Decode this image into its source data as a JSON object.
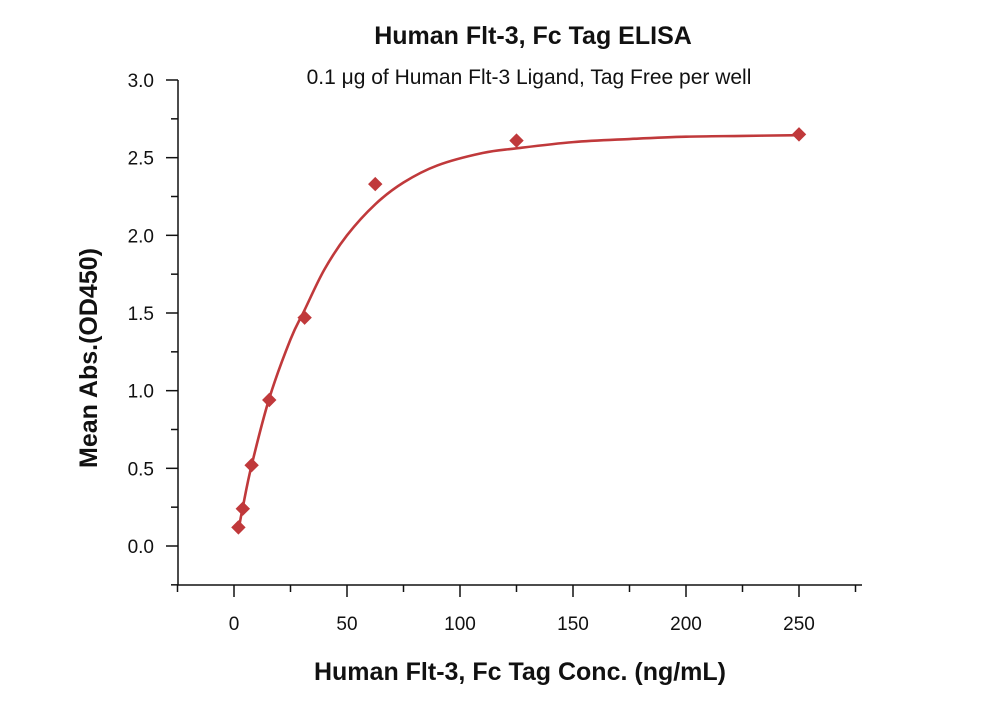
{
  "chart_data": {
    "type": "scatter",
    "title": "Human Flt-3, Fc Tag ELISA",
    "subtitle": "0.1 μg of Human Flt-3 Ligand, Tag Free per well",
    "xlabel": "Human Flt-3, Fc Tag Conc. (ng/mL)",
    "ylabel": "Mean Abs.(OD450)",
    "xlim": [
      -25,
      275
    ],
    "ylim": [
      -0.25,
      3.0
    ],
    "xticks": [
      0,
      50,
      100,
      150,
      200,
      250
    ],
    "xtick_labels": [
      "0",
      "50",
      "100",
      "150",
      "200",
      "250"
    ],
    "yticks": [
      0.0,
      0.5,
      1.0,
      1.5,
      2.0,
      2.5,
      3.0
    ],
    "ytick_labels": [
      "0.0",
      "0.5",
      "1.0",
      "1.5",
      "2.0",
      "2.5",
      "3.0"
    ],
    "grid": false,
    "series": [
      {
        "marker": "diamond",
        "color": "#c0393b",
        "points": [
          {
            "x": 1.95,
            "y": 0.12
          },
          {
            "x": 3.9,
            "y": 0.24
          },
          {
            "x": 7.8,
            "y": 0.52
          },
          {
            "x": 15.6,
            "y": 0.94
          },
          {
            "x": 31.25,
            "y": 1.47
          },
          {
            "x": 62.5,
            "y": 2.33
          },
          {
            "x": 125,
            "y": 2.61
          },
          {
            "x": 250,
            "y": 2.65
          }
        ],
        "fit_curve": [
          {
            "x": 1.95,
            "y": 0.1
          },
          {
            "x": 3.9,
            "y": 0.25
          },
          {
            "x": 7.8,
            "y": 0.52
          },
          {
            "x": 15.6,
            "y": 0.95
          },
          {
            "x": 25,
            "y": 1.33
          },
          {
            "x": 31.25,
            "y": 1.52
          },
          {
            "x": 40,
            "y": 1.78
          },
          {
            "x": 50,
            "y": 2.0
          },
          {
            "x": 62.5,
            "y": 2.2
          },
          {
            "x": 75,
            "y": 2.34
          },
          {
            "x": 90,
            "y": 2.45
          },
          {
            "x": 110,
            "y": 2.53
          },
          {
            "x": 125,
            "y": 2.56
          },
          {
            "x": 150,
            "y": 2.6
          },
          {
            "x": 175,
            "y": 2.62
          },
          {
            "x": 200,
            "y": 2.635
          },
          {
            "x": 225,
            "y": 2.64
          },
          {
            "x": 250,
            "y": 2.645
          }
        ]
      }
    ],
    "colors": {
      "series": "#c0393b",
      "curve": "#c0393b",
      "axis": "#111111"
    }
  }
}
